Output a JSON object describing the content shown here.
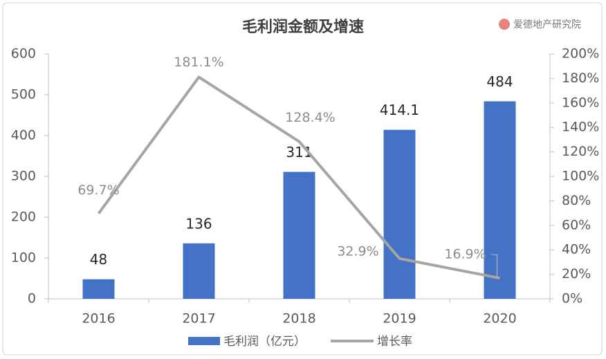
{
  "chart_data": {
    "type": "bar-line",
    "title": "毛利润金额及增速",
    "watermark": "爱德地产研究院",
    "categories": [
      "2016",
      "2017",
      "2018",
      "2019",
      "2020"
    ],
    "series": [
      {
        "name": "毛利润（亿元）",
        "type": "bar",
        "color": "#4472c4",
        "values": [
          48,
          136,
          311,
          414.1,
          484
        ]
      },
      {
        "name": "增长率",
        "type": "line",
        "axis": "y2",
        "color": "#a5a5a5",
        "values": [
          69.7,
          181.1,
          128.4,
          32.9,
          16.9
        ],
        "value_labels": [
          "69.7%",
          "181.1%",
          "128.4%",
          "32.9%",
          "16.9%"
        ]
      }
    ],
    "ylim": [
      0,
      600
    ],
    "yticks": [
      0,
      100,
      200,
      300,
      400,
      500,
      600
    ],
    "y2lim": [
      0,
      200
    ],
    "y2ticks": [
      {
        "value": 0,
        "label": "0%"
      },
      {
        "value": 20,
        "label": "20%"
      },
      {
        "value": 40,
        "label": "40%"
      },
      {
        "value": 60,
        "label": "60%"
      },
      {
        "value": 80,
        "label": "80%"
      },
      {
        "value": 100,
        "label": "100%"
      },
      {
        "value": 120,
        "label": "120%"
      },
      {
        "value": 140,
        "label": "140%"
      },
      {
        "value": 160,
        "label": "160%"
      },
      {
        "value": 180,
        "label": "180%"
      },
      {
        "value": 200,
        "label": "200%"
      }
    ],
    "legend": "bottom"
  }
}
